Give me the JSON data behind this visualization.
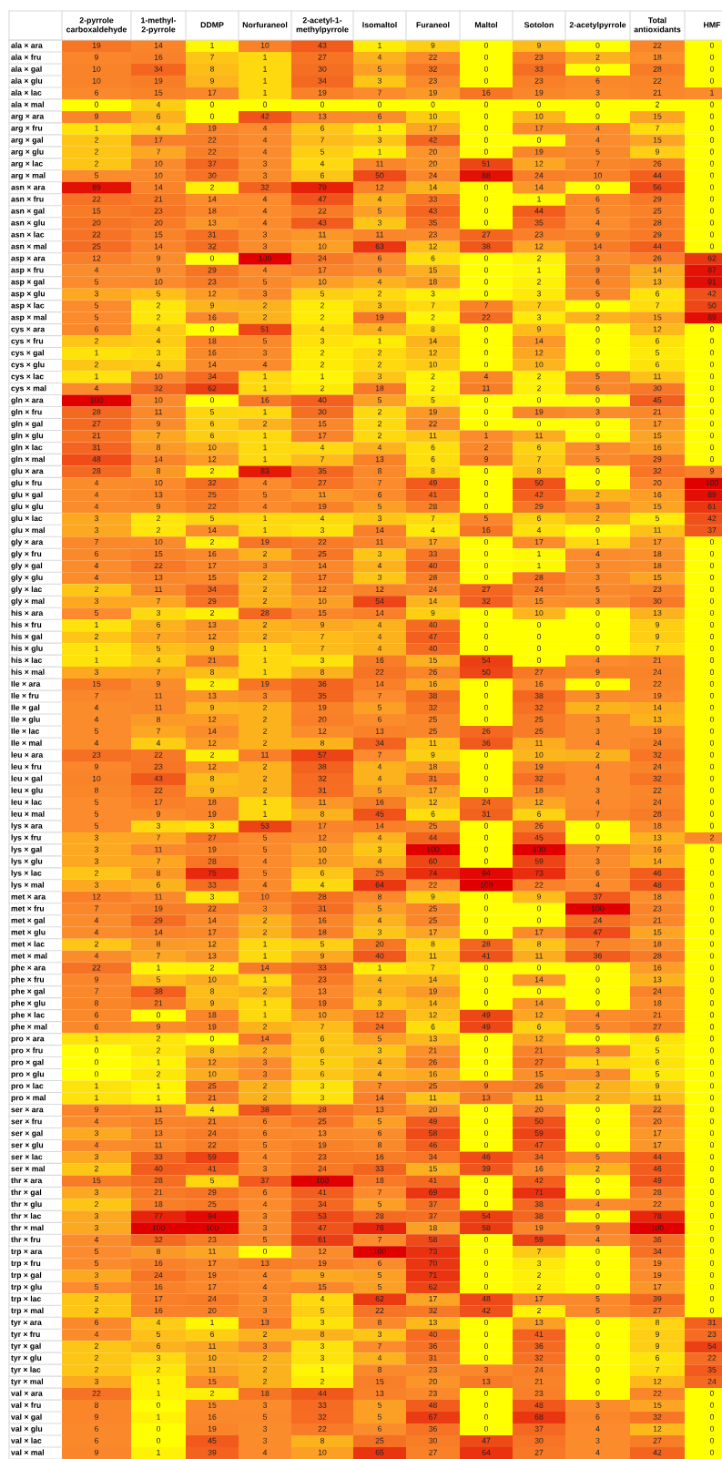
{
  "chart_data": {
    "type": "heatmap",
    "data_labels": true,
    "categories": [
      "2-pyrrole carboxaldehyde",
      "1-methyl-2-pyrrole",
      "DDMP",
      "Norfuraneol",
      "2-acetyl-1-methylpyrrole",
      "Isomaltol",
      "Furaneol",
      "Maltol",
      "Sotolon",
      "2-acetylpyrrole",
      "Total antioxidants",
      "HMF"
    ],
    "y_categories": [
      "ala × ara",
      "ala × fru",
      "ala × gal",
      "ala × glu",
      "ala × lac",
      "ala × mal",
      "arg × ara",
      "arg × fru",
      "arg × gal",
      "arg × glu",
      "arg × lac",
      "arg × mal",
      "asn × ara",
      "asn × fru",
      "asn × gal",
      "asn × glu",
      "asn × lac",
      "asn × mal",
      "asp × ara",
      "asp × fru",
      "asp × gal",
      "asp × glu",
      "asp × lac",
      "asp × mal",
      "cys × ara",
      "cys × fru",
      "cys × gal",
      "cys × glu",
      "cys × lac",
      "cys × mal",
      "gln × ara",
      "gln × fru",
      "gln × gal",
      "gln × glu",
      "gln × lac",
      "gln × mal",
      "glu × ara",
      "glu × fru",
      "glu × gal",
      "glu × glu",
      "glu × lac",
      "glu × mal",
      "gly × ara",
      "gly × fru",
      "gly × gal",
      "gly × glu",
      "gly × lac",
      "gly × mal",
      "his × ara",
      "his × fru",
      "his × gal",
      "his × glu",
      "his × lac",
      "his × mal",
      "Ile × ara",
      "Ile × fru",
      "Ile × gal",
      "Ile × glu",
      "Ile × lac",
      "Ile × mal",
      "leu × ara",
      "leu × fru",
      "leu × gal",
      "leu × glu",
      "leu × lac",
      "leu × mal",
      "lys × ara",
      "lys × fru",
      "lys × gal",
      "lys × glu",
      "lys × lac",
      "lys × mal",
      "met × ara",
      "met × fru",
      "met × gal",
      "met × glu",
      "met × lac",
      "met × mal",
      "phe × ara",
      "phe × fru",
      "phe × gal",
      "phe × glu",
      "phe × lac",
      "phe × mal",
      "pro × ara",
      "pro × fru",
      "pro × gal",
      "pro × glu",
      "pro × lac",
      "pro × mal",
      "ser × ara",
      "ser × fru",
      "ser × gal",
      "ser × glu",
      "ser × lac",
      "ser × mal",
      "thr × ara",
      "thr × gal",
      "thr × glu",
      "thr × lac",
      "thr × mal",
      "thr × fru",
      "trp × ara",
      "trp × fru",
      "trp × gal",
      "trp × glu",
      "trp × lac",
      "trp × mal",
      "tyr × ara",
      "tyr × fru",
      "tyr × gal",
      "tyr × glu",
      "tyr × lac",
      "tyr × mal",
      "val × ara",
      "val × fru",
      "val × gal",
      "val × glu",
      "val × lac",
      "val × mal"
    ],
    "cells": [
      [
        19,
        14,
        1,
        10,
        43,
        1,
        9,
        0,
        9,
        0,
        22,
        0
      ],
      [
        9,
        16,
        7,
        1,
        27,
        4,
        22,
        0,
        23,
        2,
        18,
        0
      ],
      [
        10,
        34,
        8,
        1,
        30,
        5,
        32,
        0,
        33,
        0,
        28,
        0
      ],
      [
        10,
        19,
        9,
        1,
        34,
        3,
        23,
        0,
        23,
        6,
        22,
        0
      ],
      [
        6,
        15,
        17,
        1,
        19,
        7,
        19,
        16,
        19,
        3,
        21,
        1
      ],
      [
        0,
        4,
        0,
        0,
        0,
        0,
        0,
        0,
        0,
        0,
        2,
        0
      ],
      [
        9,
        6,
        0,
        42,
        13,
        6,
        10,
        0,
        10,
        0,
        15,
        0
      ],
      [
        1,
        4,
        19,
        4,
        6,
        1,
        17,
        0,
        17,
        4,
        7,
        0
      ],
      [
        2,
        17,
        22,
        4,
        7,
        3,
        42,
        0,
        0,
        4,
        15,
        0
      ],
      [
        2,
        7,
        22,
        4,
        5,
        1,
        20,
        0,
        19,
        5,
        9,
        0
      ],
      [
        2,
        10,
        37,
        3,
        4,
        11,
        20,
        51,
        12,
        7,
        26,
        0
      ],
      [
        5,
        10,
        30,
        3,
        6,
        50,
        24,
        88,
        24,
        10,
        44,
        0
      ],
      [
        89,
        14,
        2,
        32,
        79,
        12,
        14,
        0,
        14,
        0,
        56,
        0
      ],
      [
        22,
        21,
        14,
        4,
        47,
        4,
        33,
        0,
        1,
        6,
        29,
        0
      ],
      [
        15,
        23,
        18,
        4,
        22,
        5,
        43,
        0,
        44,
        5,
        25,
        0
      ],
      [
        20,
        20,
        13,
        4,
        43,
        3,
        35,
        0,
        35,
        4,
        28,
        0
      ],
      [
        22,
        15,
        31,
        3,
        11,
        11,
        23,
        27,
        23,
        9,
        29,
        0
      ],
      [
        25,
        14,
        32,
        3,
        10,
        63,
        12,
        38,
        12,
        14,
        44,
        0
      ],
      [
        12,
        9,
        0,
        100,
        24,
        6,
        6,
        0,
        2,
        3,
        26,
        62
      ],
      [
        4,
        9,
        29,
        4,
        17,
        6,
        15,
        0,
        1,
        9,
        14,
        87
      ],
      [
        5,
        10,
        23,
        5,
        10,
        4,
        18,
        0,
        2,
        6,
        13,
        91
      ],
      [
        3,
        5,
        12,
        3,
        5,
        2,
        3,
        0,
        3,
        5,
        6,
        42
      ],
      [
        5,
        2,
        9,
        2,
        2,
        3,
        7,
        7,
        7,
        0,
        7,
        50
      ],
      [
        5,
        2,
        16,
        2,
        2,
        19,
        2,
        22,
        3,
        2,
        15,
        89
      ],
      [
        6,
        4,
        0,
        51,
        4,
        4,
        8,
        0,
        9,
        0,
        12,
        0
      ],
      [
        2,
        4,
        18,
        5,
        3,
        1,
        14,
        0,
        14,
        0,
        6,
        0
      ],
      [
        1,
        3,
        16,
        3,
        2,
        2,
        12,
        0,
        12,
        0,
        5,
        0
      ],
      [
        2,
        4,
        14,
        4,
        2,
        2,
        10,
        0,
        10,
        0,
        6,
        0
      ],
      [
        1,
        10,
        34,
        1,
        1,
        3,
        2,
        4,
        2,
        5,
        11,
        0
      ],
      [
        4,
        32,
        62,
        1,
        2,
        18,
        2,
        11,
        2,
        6,
        30,
        0
      ],
      [
        100,
        10,
        0,
        16,
        40,
        5,
        5,
        0,
        0,
        0,
        45,
        0
      ],
      [
        28,
        11,
        5,
        1,
        30,
        2,
        19,
        0,
        19,
        3,
        21,
        0
      ],
      [
        27,
        9,
        6,
        2,
        15,
        2,
        22,
        0,
        0,
        0,
        17,
        0
      ],
      [
        21,
        7,
        6,
        1,
        17,
        2,
        11,
        1,
        11,
        0,
        15,
        0
      ],
      [
        31,
        8,
        10,
        1,
        4,
        4,
        6,
        2,
        6,
        3,
        16,
        0
      ],
      [
        48,
        14,
        12,
        1,
        7,
        13,
        6,
        9,
        7,
        5,
        29,
        0
      ],
      [
        28,
        8,
        2,
        83,
        35,
        8,
        8,
        0,
        8,
        0,
        32,
        9
      ],
      [
        4,
        10,
        32,
        4,
        27,
        7,
        49,
        0,
        50,
        0,
        20,
        100
      ],
      [
        4,
        13,
        25,
        5,
        11,
        6,
        41,
        0,
        42,
        2,
        16,
        89
      ],
      [
        4,
        9,
        22,
        4,
        19,
        5,
        28,
        0,
        29,
        3,
        15,
        61
      ],
      [
        3,
        2,
        5,
        1,
        4,
        3,
        7,
        5,
        6,
        2,
        5,
        42
      ],
      [
        3,
        2,
        14,
        1,
        3,
        14,
        4,
        16,
        4,
        0,
        11,
        37
      ],
      [
        7,
        10,
        2,
        19,
        22,
        11,
        17,
        0,
        17,
        1,
        17,
        0
      ],
      [
        6,
        15,
        16,
        2,
        25,
        3,
        33,
        0,
        1,
        4,
        18,
        0
      ],
      [
        4,
        22,
        17,
        3,
        14,
        4,
        40,
        0,
        1,
        3,
        18,
        0
      ],
      [
        4,
        13,
        15,
        2,
        17,
        3,
        28,
        0,
        28,
        3,
        15,
        0
      ],
      [
        2,
        11,
        34,
        2,
        12,
        12,
        24,
        27,
        24,
        5,
        23,
        0
      ],
      [
        3,
        7,
        29,
        2,
        10,
        54,
        14,
        32,
        15,
        3,
        30,
        0
      ],
      [
        5,
        3,
        2,
        28,
        15,
        14,
        9,
        0,
        10,
        0,
        13,
        0
      ],
      [
        1,
        6,
        13,
        2,
        9,
        4,
        40,
        0,
        0,
        0,
        9,
        0
      ],
      [
        2,
        7,
        12,
        2,
        7,
        4,
        47,
        0,
        0,
        0,
        9,
        0
      ],
      [
        1,
        5,
        9,
        1,
        7,
        4,
        40,
        0,
        0,
        0,
        7,
        0
      ],
      [
        1,
        4,
        21,
        1,
        3,
        16,
        15,
        54,
        0,
        4,
        21,
        0
      ],
      [
        3,
        7,
        8,
        1,
        8,
        22,
        26,
        50,
        27,
        9,
        24,
        0
      ],
      [
        15,
        9,
        2,
        19,
        36,
        14,
        16,
        0,
        16,
        0,
        22,
        0
      ],
      [
        7,
        11,
        13,
        3,
        35,
        7,
        38,
        0,
        38,
        3,
        19,
        0
      ],
      [
        4,
        11,
        9,
        2,
        19,
        5,
        32,
        0,
        32,
        2,
        14,
        0
      ],
      [
        4,
        8,
        12,
        2,
        20,
        6,
        25,
        0,
        25,
        3,
        13,
        0
      ],
      [
        5,
        7,
        14,
        2,
        12,
        13,
        25,
        26,
        25,
        3,
        19,
        0
      ],
      [
        4,
        4,
        12,
        2,
        8,
        34,
        11,
        36,
        11,
        4,
        24,
        0
      ],
      [
        23,
        22,
        2,
        11,
        57,
        7,
        9,
        0,
        10,
        2,
        32,
        0
      ],
      [
        9,
        23,
        12,
        2,
        38,
        4,
        18,
        0,
        19,
        4,
        24,
        0
      ],
      [
        10,
        43,
        8,
        2,
        32,
        4,
        31,
        0,
        32,
        4,
        32,
        0
      ],
      [
        8,
        22,
        9,
        2,
        31,
        5,
        17,
        0,
        18,
        3,
        22,
        0
      ],
      [
        5,
        17,
        18,
        1,
        11,
        16,
        12,
        24,
        12,
        4,
        24,
        0
      ],
      [
        5,
        9,
        19,
        1,
        8,
        45,
        6,
        31,
        6,
        7,
        28,
        0
      ],
      [
        5,
        3,
        3,
        53,
        17,
        14,
        25,
        0,
        26,
        0,
        18,
        0
      ],
      [
        3,
        7,
        27,
        5,
        12,
        4,
        44,
        0,
        45,
        0,
        13,
        2
      ],
      [
        3,
        11,
        19,
        5,
        10,
        3,
        100,
        0,
        100,
        7,
        16,
        0
      ],
      [
        3,
        7,
        28,
        4,
        10,
        4,
        60,
        0,
        59,
        3,
        14,
        0
      ],
      [
        2,
        8,
        75,
        5,
        6,
        25,
        74,
        94,
        73,
        6,
        46,
        0
      ],
      [
        3,
        6,
        33,
        4,
        4,
        64,
        22,
        100,
        22,
        4,
        48,
        0
      ],
      [
        12,
        11,
        3,
        10,
        28,
        8,
        9,
        0,
        9,
        37,
        18,
        0
      ],
      [
        7,
        19,
        22,
        3,
        31,
        5,
        25,
        0,
        0,
        100,
        23,
        0
      ],
      [
        4,
        29,
        14,
        2,
        16,
        4,
        25,
        0,
        0,
        24,
        21,
        0
      ],
      [
        4,
        14,
        17,
        2,
        18,
        3,
        17,
        0,
        17,
        47,
        15,
        0
      ],
      [
        2,
        8,
        12,
        1,
        5,
        20,
        8,
        28,
        8,
        7,
        18,
        0
      ],
      [
        4,
        7,
        13,
        1,
        9,
        40,
        11,
        41,
        11,
        36,
        28,
        0
      ],
      [
        22,
        1,
        2,
        14,
        33,
        1,
        7,
        0,
        0,
        0,
        16,
        0
      ],
      [
        9,
        5,
        10,
        1,
        23,
        4,
        14,
        0,
        14,
        0,
        13,
        0
      ],
      [
        7,
        38,
        8,
        2,
        13,
        4,
        19,
        0,
        0,
        0,
        24,
        0
      ],
      [
        8,
        21,
        9,
        1,
        19,
        3,
        14,
        0,
        14,
        0,
        18,
        0
      ],
      [
        6,
        0,
        18,
        1,
        10,
        12,
        12,
        49,
        12,
        4,
        21,
        0
      ],
      [
        6,
        9,
        19,
        2,
        7,
        24,
        6,
        49,
        6,
        5,
        27,
        0
      ],
      [
        1,
        2,
        0,
        14,
        6,
        5,
        13,
        0,
        12,
        0,
        6,
        0
      ],
      [
        0,
        2,
        8,
        2,
        6,
        3,
        21,
        0,
        21,
        3,
        5,
        0
      ],
      [
        0,
        1,
        12,
        3,
        5,
        4,
        26,
        0,
        27,
        1,
        6,
        0
      ],
      [
        0,
        2,
        10,
        3,
        6,
        4,
        16,
        0,
        15,
        3,
        5,
        0
      ],
      [
        1,
        1,
        25,
        2,
        3,
        7,
        25,
        9,
        26,
        2,
        9,
        0
      ],
      [
        1,
        1,
        21,
        2,
        3,
        14,
        11,
        13,
        11,
        2,
        11,
        0
      ],
      [
        9,
        11,
        4,
        38,
        28,
        13,
        20,
        0,
        20,
        0,
        22,
        0
      ],
      [
        4,
        15,
        21,
        6,
        25,
        5,
        49,
        0,
        50,
        0,
        20,
        0
      ],
      [
        3,
        13,
        24,
        6,
        13,
        6,
        58,
        0,
        59,
        0,
        17,
        0
      ],
      [
        4,
        11,
        22,
        5,
        19,
        8,
        46,
        0,
        47,
        0,
        17,
        0
      ],
      [
        3,
        33,
        59,
        4,
        23,
        16,
        34,
        46,
        34,
        5,
        44,
        0
      ],
      [
        2,
        40,
        41,
        3,
        24,
        33,
        15,
        39,
        16,
        2,
        46,
        0
      ],
      [
        15,
        28,
        5,
        37,
        100,
        18,
        41,
        0,
        42,
        0,
        49,
        0
      ],
      [
        3,
        21,
        29,
        6,
        41,
        7,
        69,
        0,
        71,
        0,
        28,
        0
      ],
      [
        2,
        18,
        25,
        4,
        34,
        5,
        37,
        0,
        38,
        4,
        22,
        0
      ],
      [
        3,
        77,
        94,
        3,
        53,
        28,
        37,
        54,
        38,
        0,
        78,
        0
      ],
      [
        3,
        100,
        100,
        3,
        47,
        76,
        18,
        58,
        19,
        9,
        100,
        0
      ],
      [
        4,
        32,
        23,
        5,
        61,
        7,
        58,
        0,
        59,
        4,
        36,
        0
      ],
      [
        5,
        8,
        11,
        0,
        12,
        100,
        73,
        0,
        7,
        0,
        34,
        0
      ],
      [
        5,
        16,
        17,
        13,
        19,
        6,
        70,
        0,
        3,
        0,
        19,
        0
      ],
      [
        3,
        24,
        19,
        4,
        9,
        5,
        71,
        0,
        2,
        0,
        19,
        0
      ],
      [
        5,
        16,
        17,
        4,
        15,
        5,
        62,
        0,
        2,
        0,
        17,
        0
      ],
      [
        2,
        17,
        24,
        3,
        4,
        62,
        17,
        48,
        17,
        5,
        39,
        0
      ],
      [
        2,
        16,
        20,
        3,
        5,
        22,
        32,
        42,
        2,
        5,
        27,
        0
      ],
      [
        6,
        4,
        1,
        13,
        3,
        8,
        13,
        0,
        13,
        0,
        8,
        31
      ],
      [
        4,
        5,
        6,
        2,
        8,
        3,
        40,
        0,
        41,
        0,
        9,
        23
      ],
      [
        2,
        6,
        11,
        3,
        3,
        7,
        36,
        0,
        36,
        0,
        9,
        54
      ],
      [
        2,
        3,
        10,
        2,
        3,
        4,
        31,
        0,
        32,
        0,
        6,
        22
      ],
      [
        2,
        2,
        11,
        2,
        1,
        8,
        23,
        3,
        24,
        0,
        7,
        35
      ],
      [
        3,
        1,
        15,
        2,
        2,
        15,
        20,
        13,
        21,
        0,
        12,
        24
      ],
      [
        22,
        1,
        2,
        18,
        44,
        13,
        23,
        0,
        23,
        0,
        22,
        0
      ],
      [
        8,
        0,
        15,
        3,
        33,
        5,
        48,
        0,
        48,
        3,
        15,
        0
      ],
      [
        9,
        1,
        16,
        5,
        32,
        5,
        67,
        0,
        68,
        6,
        32,
        0
      ],
      [
        6,
        0,
        19,
        3,
        22,
        6,
        36,
        0,
        37,
        4,
        12,
        0
      ],
      [
        6,
        0,
        45,
        3,
        8,
        25,
        30,
        47,
        30,
        3,
        27,
        0
      ],
      [
        9,
        1,
        39,
        4,
        10,
        65,
        27,
        64,
        27,
        4,
        42,
        0
      ]
    ]
  }
}
